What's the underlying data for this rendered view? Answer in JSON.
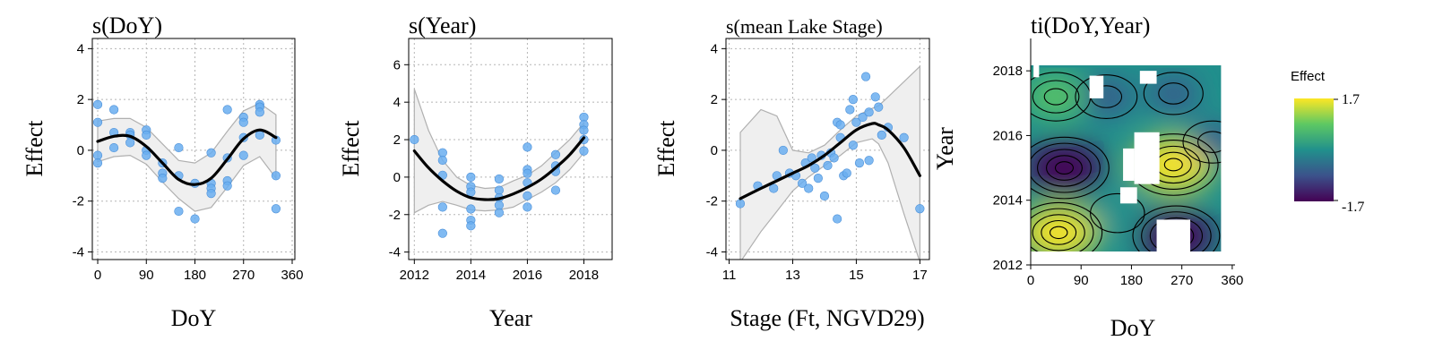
{
  "chart_data": [
    {
      "type": "scatter",
      "title": "s(DoY)",
      "xlabel": "DoY",
      "ylabel": "Effect",
      "xlim": [
        -10,
        365
      ],
      "ylim": [
        -4.3,
        4.4
      ],
      "xticks": [
        0,
        90,
        180,
        270,
        360
      ],
      "yticks": [
        -4,
        -2,
        0,
        2,
        4
      ],
      "grid": true,
      "points": [
        {
          "x": 0,
          "y": 1.8
        },
        {
          "x": 0,
          "y": 1.1
        },
        {
          "x": 0,
          "y": -0.2
        },
        {
          "x": 0,
          "y": -0.5
        },
        {
          "x": 30,
          "y": 1.6
        },
        {
          "x": 30,
          "y": 0.7
        },
        {
          "x": 30,
          "y": 0.1
        },
        {
          "x": 60,
          "y": 0.7
        },
        {
          "x": 60,
          "y": 0.6
        },
        {
          "x": 60,
          "y": 0.3
        },
        {
          "x": 90,
          "y": 0.8
        },
        {
          "x": 90,
          "y": 0.6
        },
        {
          "x": 90,
          "y": 0.0
        },
        {
          "x": 90,
          "y": -0.2
        },
        {
          "x": 120,
          "y": -0.5
        },
        {
          "x": 120,
          "y": -0.9
        },
        {
          "x": 120,
          "y": -1.1
        },
        {
          "x": 150,
          "y": 0.1
        },
        {
          "x": 150,
          "y": -1.0
        },
        {
          "x": 150,
          "y": -2.4
        },
        {
          "x": 180,
          "y": -1.3
        },
        {
          "x": 180,
          "y": -2.7
        },
        {
          "x": 210,
          "y": -0.1
        },
        {
          "x": 210,
          "y": -1.3
        },
        {
          "x": 210,
          "y": -1.5
        },
        {
          "x": 210,
          "y": -1.7
        },
        {
          "x": 240,
          "y": 1.6
        },
        {
          "x": 240,
          "y": -0.3
        },
        {
          "x": 240,
          "y": -1.2
        },
        {
          "x": 240,
          "y": -1.4
        },
        {
          "x": 270,
          "y": 1.3
        },
        {
          "x": 270,
          "y": 1.1
        },
        {
          "x": 270,
          "y": 0.5
        },
        {
          "x": 270,
          "y": -0.2
        },
        {
          "x": 300,
          "y": 1.8
        },
        {
          "x": 300,
          "y": 1.7
        },
        {
          "x": 300,
          "y": 1.5
        },
        {
          "x": 300,
          "y": 0.6
        },
        {
          "x": 330,
          "y": 0.4
        },
        {
          "x": 330,
          "y": -1.0
        },
        {
          "x": 330,
          "y": -2.3
        }
      ],
      "fit": {
        "x": [
          0,
          30,
          60,
          90,
          120,
          150,
          180,
          210,
          240,
          270,
          300,
          330
        ],
        "y": [
          0.35,
          0.55,
          0.55,
          0.15,
          -0.5,
          -1.15,
          -1.35,
          -1.1,
          -0.35,
          0.45,
          0.8,
          0.5
        ],
        "lower": [
          -0.45,
          -0.25,
          -0.2,
          -0.55,
          -1.25,
          -1.9,
          -2.4,
          -2.25,
          -1.45,
          -0.6,
          -0.25,
          -1.1
        ],
        "upper": [
          1.15,
          1.25,
          1.25,
          0.9,
          0.25,
          -0.4,
          -0.5,
          -0.1,
          0.75,
          1.55,
          1.85,
          1.4
        ]
      }
    },
    {
      "type": "scatter",
      "title": "s(Year)",
      "xlabel": "Year",
      "ylabel": "Effect",
      "xlim": [
        2011.8,
        2019.0
      ],
      "ylim": [
        -4.4,
        7.4
      ],
      "xticks": [
        2012,
        2014,
        2016,
        2018
      ],
      "yticks": [
        -4,
        -2,
        0,
        2,
        4,
        6
      ],
      "grid": true,
      "points": [
        {
          "x": 2012,
          "y": 2.0
        },
        {
          "x": 2013,
          "y": 1.3
        },
        {
          "x": 2013,
          "y": 0.9
        },
        {
          "x": 2013,
          "y": 0.1
        },
        {
          "x": 2013,
          "y": -1.6
        },
        {
          "x": 2013,
          "y": -3.0
        },
        {
          "x": 2014,
          "y": 0.0
        },
        {
          "x": 2014,
          "y": -0.5
        },
        {
          "x": 2014,
          "y": -0.8
        },
        {
          "x": 2014,
          "y": -1.7
        },
        {
          "x": 2014,
          "y": -2.3
        },
        {
          "x": 2014,
          "y": -2.6
        },
        {
          "x": 2015,
          "y": -0.1
        },
        {
          "x": 2015,
          "y": -0.7
        },
        {
          "x": 2015,
          "y": -1.1
        },
        {
          "x": 2015,
          "y": -1.5
        },
        {
          "x": 2015,
          "y": -1.9
        },
        {
          "x": 2016,
          "y": 1.6
        },
        {
          "x": 2016,
          "y": 0.4
        },
        {
          "x": 2016,
          "y": 0.2
        },
        {
          "x": 2016,
          "y": -0.3
        },
        {
          "x": 2016,
          "y": -1.0
        },
        {
          "x": 2016,
          "y": -1.6
        },
        {
          "x": 2017,
          "y": 1.2
        },
        {
          "x": 2017,
          "y": 0.6
        },
        {
          "x": 2017,
          "y": 0.3
        },
        {
          "x": 2017,
          "y": -0.7
        },
        {
          "x": 2018,
          "y": 3.2
        },
        {
          "x": 2018,
          "y": 2.8
        },
        {
          "x": 2018,
          "y": 2.5
        },
        {
          "x": 2018,
          "y": 2.0
        },
        {
          "x": 2018,
          "y": 1.4
        }
      ],
      "fit": {
        "x": [
          2012,
          2012.5,
          2013,
          2013.5,
          2014,
          2014.5,
          2015,
          2015.5,
          2016,
          2016.5,
          2017,
          2017.5,
          2018
        ],
        "y": [
          1.4,
          0.5,
          -0.2,
          -0.75,
          -1.1,
          -1.2,
          -1.15,
          -0.9,
          -0.55,
          -0.1,
          0.5,
          1.2,
          2.1
        ],
        "lower": [
          -1.9,
          -1.5,
          -1.3,
          -1.5,
          -1.75,
          -1.8,
          -1.75,
          -1.6,
          -1.2,
          -0.8,
          -0.3,
          0.4,
          1.3
        ],
        "upper": [
          4.7,
          2.5,
          0.9,
          0.0,
          -0.45,
          -0.6,
          -0.55,
          -0.2,
          0.1,
          0.6,
          1.3,
          2.0,
          2.9
        ]
      }
    },
    {
      "type": "scatter",
      "title": "s(mean Lake Stage)",
      "xlabel": "Stage (Ft, NGVD29)",
      "ylabel": "Effect",
      "xlim": [
        10.9,
        17.3
      ],
      "ylim": [
        -4.3,
        4.4
      ],
      "xticks": [
        11,
        13,
        15,
        17
      ],
      "yticks": [
        -4,
        -2,
        0,
        2,
        4
      ],
      "grid": true,
      "points": [
        {
          "x": 11.35,
          "y": -2.1
        },
        {
          "x": 11.9,
          "y": -1.4
        },
        {
          "x": 12.4,
          "y": -1.5
        },
        {
          "x": 12.5,
          "y": -1.0
        },
        {
          "x": 12.7,
          "y": 0.0
        },
        {
          "x": 12.9,
          "y": -0.9
        },
        {
          "x": 13.1,
          "y": -1.0
        },
        {
          "x": 13.3,
          "y": -1.3
        },
        {
          "x": 13.4,
          "y": -0.5
        },
        {
          "x": 13.5,
          "y": -1.5
        },
        {
          "x": 13.6,
          "y": -0.3
        },
        {
          "x": 13.7,
          "y": -0.7
        },
        {
          "x": 13.8,
          "y": -1.1
        },
        {
          "x": 13.9,
          "y": -0.2
        },
        {
          "x": 14.0,
          "y": -1.8
        },
        {
          "x": 14.1,
          "y": -0.6
        },
        {
          "x": 14.2,
          "y": -0.1
        },
        {
          "x": 14.3,
          "y": -0.3
        },
        {
          "x": 14.4,
          "y": 1.1
        },
        {
          "x": 14.4,
          "y": -2.7
        },
        {
          "x": 14.5,
          "y": 0.5
        },
        {
          "x": 14.5,
          "y": 1.0
        },
        {
          "x": 14.6,
          "y": -1.0
        },
        {
          "x": 14.7,
          "y": -0.9
        },
        {
          "x": 14.8,
          "y": 1.6
        },
        {
          "x": 14.9,
          "y": 2.0
        },
        {
          "x": 14.9,
          "y": 0.2
        },
        {
          "x": 15.0,
          "y": 1.1
        },
        {
          "x": 15.1,
          "y": -0.5
        },
        {
          "x": 15.2,
          "y": 1.3
        },
        {
          "x": 15.3,
          "y": 2.9
        },
        {
          "x": 15.4,
          "y": 1.5
        },
        {
          "x": 15.4,
          "y": -0.4
        },
        {
          "x": 15.6,
          "y": 2.1
        },
        {
          "x": 15.7,
          "y": 1.7
        },
        {
          "x": 15.8,
          "y": 0.6
        },
        {
          "x": 16.0,
          "y": 0.9
        },
        {
          "x": 16.5,
          "y": 0.5
        },
        {
          "x": 17.0,
          "y": -2.3
        }
      ],
      "fit": {
        "x": [
          11.35,
          12.0,
          12.5,
          13.0,
          13.5,
          14.0,
          14.5,
          15.0,
          15.5,
          15.7,
          16.0,
          16.5,
          17.0
        ],
        "y": [
          -1.9,
          -1.5,
          -1.2,
          -0.9,
          -0.6,
          -0.2,
          0.3,
          0.8,
          1.05,
          1.0,
          0.8,
          0.1,
          -1.0
        ],
        "lower": [
          -4.4,
          -3.2,
          -2.4,
          -1.6,
          -1.05,
          -0.6,
          -0.2,
          0.3,
          0.45,
          0.25,
          -0.5,
          -2.5,
          -4.4
        ],
        "upper": [
          0.7,
          1.6,
          1.35,
          0.0,
          -0.1,
          0.2,
          0.8,
          1.35,
          1.65,
          1.75,
          2.1,
          2.7,
          3.3
        ]
      }
    },
    {
      "type": "heatmap",
      "title": "ti(DoY,Year)",
      "xlabel": "DoY",
      "ylabel": "Year",
      "xlim": [
        0,
        365
      ],
      "ylim": [
        2012,
        2019
      ],
      "xticks": [
        0,
        90,
        180,
        270,
        360
      ],
      "yticks": [
        2012,
        2014,
        2016,
        2018
      ],
      "colorscale": "viridis",
      "colors": [
        "#440154",
        "#3b528b",
        "#21908c",
        "#5dc863",
        "#fde725"
      ],
      "legend": {
        "title": "Effect",
        "max": 1.7,
        "min": -1.7,
        "max_label": "1.7",
        "min_label": "-1.7"
      },
      "features": [
        {
          "x": 45,
          "y": 2017.2,
          "value": 0.9
        },
        {
          "x": 135,
          "y": 2017.2,
          "value": -0.6
        },
        {
          "x": 255,
          "y": 2017.3,
          "value": -0.5
        },
        {
          "x": 60,
          "y": 2015.0,
          "value": -1.7
        },
        {
          "x": 255,
          "y": 2015.1,
          "value": 1.7
        },
        {
          "x": 325,
          "y": 2015.8,
          "value": -0.5
        },
        {
          "x": 50,
          "y": 2013.0,
          "value": 1.6
        },
        {
          "x": 260,
          "y": 2012.9,
          "value": -1.6
        },
        {
          "x": 155,
          "y": 2013.6,
          "value": -0.3
        }
      ],
      "gaps": [
        {
          "x0": 5,
          "x1": 15,
          "y0": 2017.8,
          "y1": 2018.2
        },
        {
          "x0": 105,
          "x1": 130,
          "y0": 2017.15,
          "y1": 2017.85
        },
        {
          "x0": 195,
          "x1": 225,
          "y0": 2017.6,
          "y1": 2018.0
        },
        {
          "x0": 185,
          "x1": 230,
          "y0": 2014.5,
          "y1": 2016.1
        },
        {
          "x0": 165,
          "x1": 185,
          "y0": 2014.6,
          "y1": 2015.6
        },
        {
          "x0": 160,
          "x1": 190,
          "y0": 2013.9,
          "y1": 2014.4
        },
        {
          "x0": 225,
          "x1": 285,
          "y0": 2012.2,
          "y1": 2013.4
        },
        {
          "x0": 340,
          "x1": 365,
          "y0": 2012.0,
          "y1": 2019.0
        }
      ]
    }
  ]
}
